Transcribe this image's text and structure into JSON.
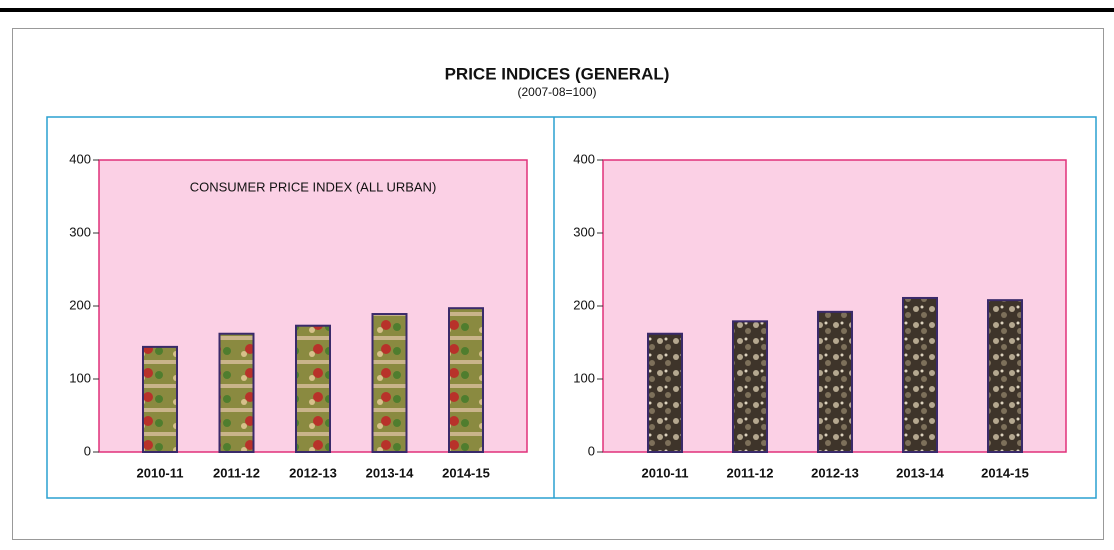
{
  "title": "PRICE INDICES (GENERAL)",
  "subtitle": "(2007-08=100)",
  "chart_data": [
    {
      "type": "bar",
      "annotation": "CONSUMER PRICE INDEX (ALL URBAN)",
      "categories": [
        "2010-11",
        "2011-12",
        "2012-13",
        "2013-14",
        "2014-15"
      ],
      "values": [
        144,
        162,
        173,
        189,
        197
      ],
      "color": "#7a6a3a",
      "ylim": [
        0,
        400
      ],
      "yticks": [
        0,
        100,
        200,
        300,
        400
      ]
    },
    {
      "type": "bar",
      "categories": [
        "2010-11",
        "2011-12",
        "2012-13",
        "2013-14",
        "2014-15"
      ],
      "values": [
        162,
        179,
        192,
        211,
        208
      ],
      "color": "#5e5140",
      "ylim": [
        0,
        400
      ],
      "yticks": [
        0,
        100,
        200,
        300,
        400
      ]
    }
  ]
}
